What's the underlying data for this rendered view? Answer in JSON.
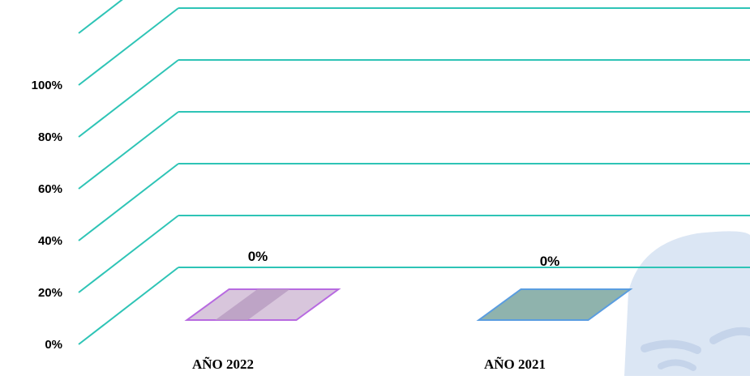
{
  "chart_data": {
    "type": "bar",
    "style": "3d",
    "categories": [
      "AÑO 2022",
      "AÑO 2021"
    ],
    "values": [
      0,
      0
    ],
    "data_labels": [
      "0%",
      "0%"
    ],
    "y_ticks": [
      "0%",
      "20%",
      "40%",
      "60%",
      "80%",
      "100%"
    ],
    "ylim": [
      0,
      100
    ],
    "grid": true,
    "legend": "none",
    "colors": {
      "gridline": "#2ec4b6",
      "bar1_fill": "#d8c6dc",
      "bar1_stripe": "#b89bc0",
      "bar1_stroke": "#b76ae0",
      "bar2_fill": "#8fb3ad",
      "bar2_stroke": "#5a9de0",
      "watermark": "#dbe6f4"
    }
  }
}
